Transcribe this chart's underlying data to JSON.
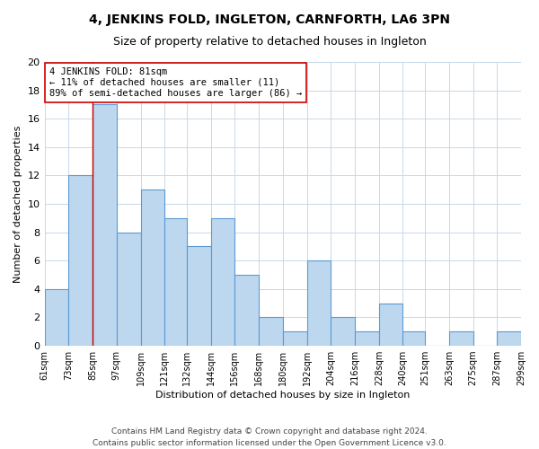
{
  "title": "4, JENKINS FOLD, INGLETON, CARNFORTH, LA6 3PN",
  "subtitle": "Size of property relative to detached houses in Ingleton",
  "xlabel": "Distribution of detached houses by size in Ingleton",
  "ylabel": "Number of detached properties",
  "bin_edges": [
    61,
    73,
    85,
    97,
    109,
    121,
    132,
    144,
    156,
    168,
    180,
    192,
    204,
    216,
    228,
    240,
    251,
    263,
    275,
    287,
    299
  ],
  "bin_labels": [
    "61sqm",
    "73sqm",
    "85sqm",
    "97sqm",
    "109sqm",
    "121sqm",
    "132sqm",
    "144sqm",
    "156sqm",
    "168sqm",
    "180sqm",
    "192sqm",
    "204sqm",
    "216sqm",
    "228sqm",
    "240sqm",
    "251sqm",
    "263sqm",
    "275sqm",
    "287sqm",
    "299sqm"
  ],
  "counts": [
    4,
    12,
    17,
    8,
    11,
    9,
    7,
    9,
    5,
    2,
    1,
    6,
    2,
    1,
    3,
    1,
    0,
    1,
    0,
    1
  ],
  "bar_color": "#bdd7ee",
  "bar_edge_color": "#5b9bd5",
  "property_line_x": 85,
  "property_line_color": "#cc0000",
  "annotation_line1": "4 JENKINS FOLD: 81sqm",
  "annotation_line2": "← 11% of detached houses are smaller (11)",
  "annotation_line3": "89% of semi-detached houses are larger (86) →",
  "annotation_box_color": "#ffffff",
  "annotation_box_edge": "#cc0000",
  "ylim": [
    0,
    20
  ],
  "yticks": [
    0,
    2,
    4,
    6,
    8,
    10,
    12,
    14,
    16,
    18,
    20
  ],
  "footer_line1": "Contains HM Land Registry data © Crown copyright and database right 2024.",
  "footer_line2": "Contains public sector information licensed under the Open Government Licence v3.0.",
  "background_color": "#ffffff",
  "grid_color": "#c8d8e8",
  "title_fontsize": 10,
  "subtitle_fontsize": 9,
  "xlabel_fontsize": 8,
  "ylabel_fontsize": 8,
  "annotation_fontsize": 7.5,
  "footer_fontsize": 6.5
}
